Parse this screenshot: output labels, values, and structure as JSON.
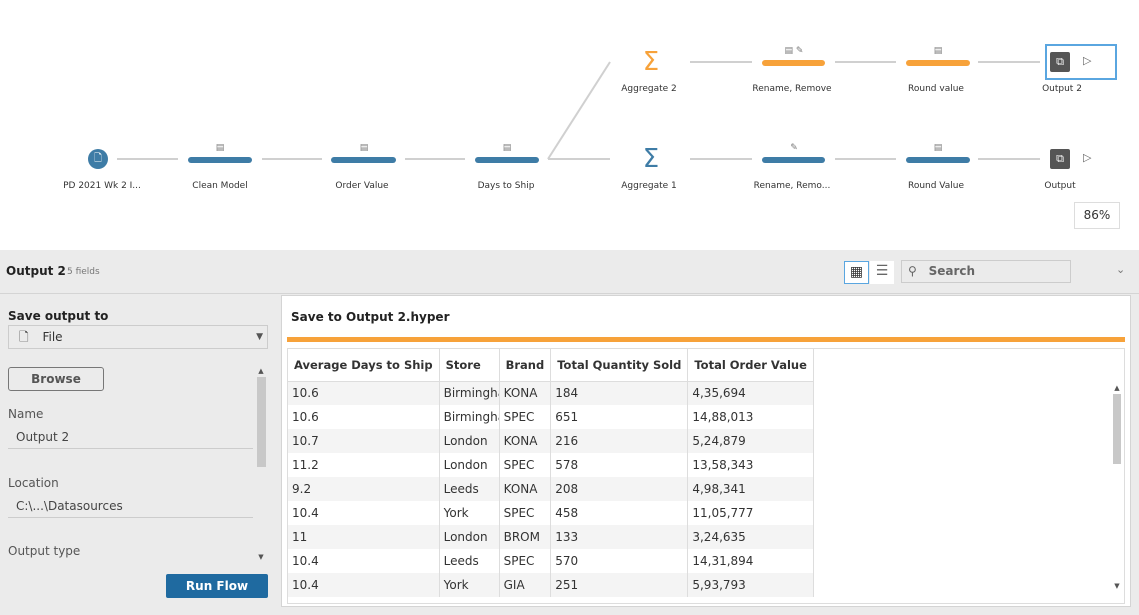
{
  "flow": {
    "nodes": [
      {
        "label": "PD 2021 Wk 2 I...",
        "type": "input",
        "color": "#3e7ca6"
      },
      {
        "label": "Clean Model",
        "type": "clean",
        "color": "#3e7ca6"
      },
      {
        "label": "Order Value",
        "type": "clean",
        "color": "#3e7ca6"
      },
      {
        "label": "Days to Ship",
        "type": "clean",
        "color": "#3e7ca6"
      },
      {
        "label": "Aggregate 2",
        "type": "aggregate",
        "color": "#f7a23a"
      },
      {
        "label": "Rename, Remove",
        "type": "clean",
        "color": "#f7a23a"
      },
      {
        "label": "Round value",
        "type": "clean",
        "color": "#f7a23a"
      },
      {
        "label": "Output 2",
        "type": "output",
        "selected": true
      },
      {
        "label": "Aggregate 1",
        "type": "aggregate",
        "color": "#3e7ca6"
      },
      {
        "label": "Rename, Remo...",
        "type": "clean",
        "color": "#3e7ca6"
      },
      {
        "label": "Round Value",
        "type": "clean",
        "color": "#3e7ca6"
      },
      {
        "label": "Output",
        "type": "output"
      }
    ],
    "zoom": "86%"
  },
  "header": {
    "title": "Output 2",
    "fields": "5 fields",
    "search_placeholder": "Search"
  },
  "left": {
    "save_output_to": "Save output to",
    "save_type": "File",
    "browse": "Browse",
    "name_label": "Name",
    "name_value": "Output 2",
    "location_label": "Location",
    "location_value": "C:\\...\\Datasources",
    "output_type_label": "Output type",
    "run_flow": "Run Flow"
  },
  "right": {
    "title": "Save to Output 2.hyper",
    "columns": [
      "Average Days to Ship",
      "Store",
      "Brand",
      "Total Quantity Sold",
      "Total Order Value"
    ],
    "rows": [
      [
        "10.6",
        "Birmingham",
        "KONA",
        "184",
        "4,35,694"
      ],
      [
        "10.6",
        "Birmingham",
        "SPEC",
        "651",
        "14,88,013"
      ],
      [
        "10.7",
        "London",
        "KONA",
        "216",
        "5,24,879"
      ],
      [
        "11.2",
        "London",
        "SPEC",
        "578",
        "13,58,343"
      ],
      [
        "9.2",
        "Leeds",
        "KONA",
        "208",
        "4,98,341"
      ],
      [
        "10.4",
        "York",
        "SPEC",
        "458",
        "11,05,777"
      ],
      [
        "11",
        "London",
        "BROM",
        "133",
        "3,24,635"
      ],
      [
        "10.4",
        "Leeds",
        "SPEC",
        "570",
        "14,31,894"
      ],
      [
        "10.4",
        "York",
        "GIA",
        "251",
        "5,93,793"
      ]
    ]
  },
  "colors": {
    "accent_orange": "#f7a23a",
    "accent_blue": "#3e7ca6",
    "run_button": "#1f6aa0"
  }
}
